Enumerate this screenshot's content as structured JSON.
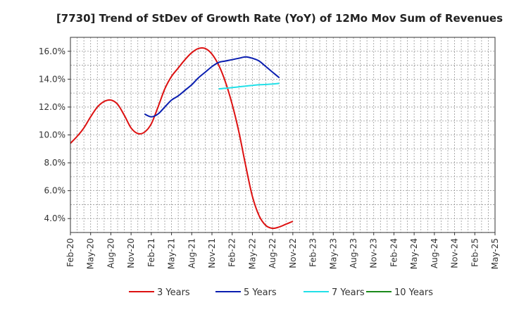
{
  "chart_data": {
    "type": "line",
    "title": "[7730]  Trend of StDev of Growth Rate (YoY) of 12Mo Mov Sum of Revenues",
    "xlabel": "",
    "ylabel": "",
    "ylim": [
      3.0,
      17.0
    ],
    "y_ticks": [
      4.0,
      6.0,
      8.0,
      10.0,
      12.0,
      14.0,
      16.0
    ],
    "y_tick_labels": [
      "4.0%",
      "6.0%",
      "8.0%",
      "10.0%",
      "12.0%",
      "14.0%",
      "16.0%"
    ],
    "x_ticks": [
      "Feb-20",
      "May-20",
      "Aug-20",
      "Nov-20",
      "Feb-21",
      "May-21",
      "Aug-21",
      "Nov-21",
      "Feb-22",
      "May-22",
      "Aug-22",
      "Nov-22",
      "Feb-23",
      "May-23",
      "Aug-23",
      "Nov-23",
      "Feb-24",
      "May-24",
      "Aug-24",
      "Nov-24",
      "Feb-25",
      "May-25"
    ],
    "grid": true,
    "legend_position": "bottom",
    "series": [
      {
        "name": "3 Years",
        "color": "#dd1111",
        "points": [
          [
            0,
            9.4
          ],
          [
            1,
            9.9
          ],
          [
            2,
            10.5
          ],
          [
            3,
            11.3
          ],
          [
            4,
            12.0
          ],
          [
            5,
            12.4
          ],
          [
            6,
            12.5
          ],
          [
            7,
            12.2
          ],
          [
            8,
            11.4
          ],
          [
            9,
            10.5
          ],
          [
            10,
            10.1
          ],
          [
            11,
            10.2
          ],
          [
            12,
            10.8
          ],
          [
            13,
            12.0
          ],
          [
            14,
            13.3
          ],
          [
            15,
            14.2
          ],
          [
            16,
            14.8
          ],
          [
            17,
            15.4
          ],
          [
            18,
            15.9
          ],
          [
            19,
            16.2
          ],
          [
            20,
            16.2
          ],
          [
            21,
            15.8
          ],
          [
            22,
            15.0
          ],
          [
            23,
            13.8
          ],
          [
            24,
            12.2
          ],
          [
            25,
            10.2
          ],
          [
            26,
            7.8
          ],
          [
            27,
            5.6
          ],
          [
            28,
            4.2
          ],
          [
            29,
            3.5
          ],
          [
            30,
            3.3
          ],
          [
            31,
            3.4
          ],
          [
            32,
            3.6
          ],
          [
            33,
            3.8
          ]
        ]
      },
      {
        "name": "5 Years",
        "color": "#0a1eb0",
        "points": [
          [
            11,
            11.5
          ],
          [
            12,
            11.3
          ],
          [
            13,
            11.5
          ],
          [
            14,
            12.0
          ],
          [
            15,
            12.5
          ],
          [
            16,
            12.8
          ],
          [
            17,
            13.2
          ],
          [
            18,
            13.6
          ],
          [
            19,
            14.1
          ],
          [
            20,
            14.5
          ],
          [
            21,
            14.9
          ],
          [
            22,
            15.2
          ],
          [
            23,
            15.3
          ],
          [
            24,
            15.4
          ],
          [
            25,
            15.5
          ],
          [
            26,
            15.6
          ],
          [
            27,
            15.5
          ],
          [
            28,
            15.3
          ],
          [
            29,
            14.9
          ],
          [
            30,
            14.5
          ],
          [
            31,
            14.1
          ]
        ]
      },
      {
        "name": "7 Years",
        "color": "#22e0e8",
        "points": [
          [
            22,
            13.3
          ],
          [
            23,
            13.35
          ],
          [
            24,
            13.4
          ],
          [
            25,
            13.45
          ],
          [
            26,
            13.5
          ],
          [
            27,
            13.55
          ],
          [
            28,
            13.6
          ],
          [
            29,
            13.62
          ],
          [
            30,
            13.65
          ],
          [
            31,
            13.7
          ]
        ]
      },
      {
        "name": "10 Years",
        "color": "#1a8a1a",
        "points": []
      }
    ]
  }
}
